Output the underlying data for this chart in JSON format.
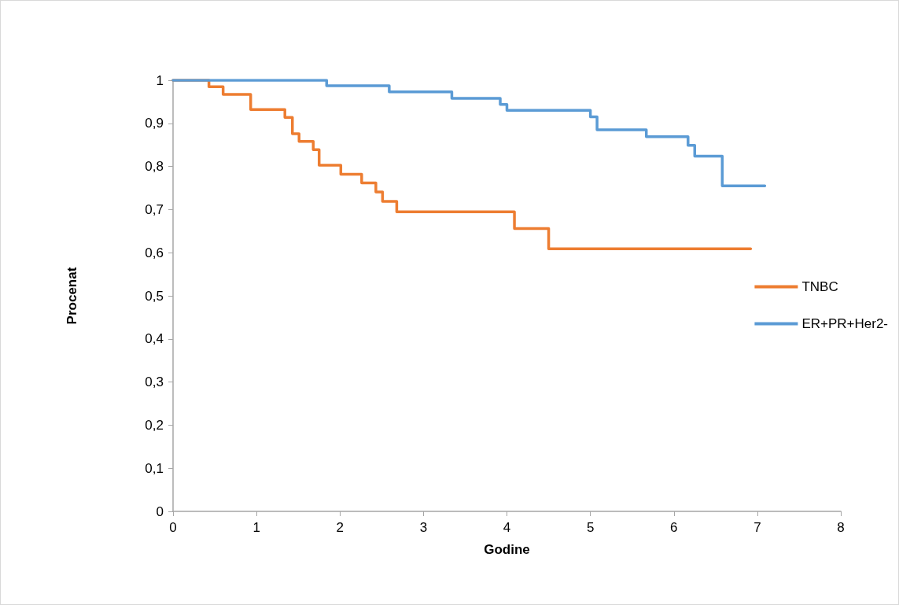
{
  "chart_data": {
    "type": "step",
    "xlabel": "Godine",
    "ylabel": "Procenat",
    "xlim": [
      0,
      8
    ],
    "xticks": [
      0,
      1,
      2,
      3,
      4,
      5,
      6,
      7,
      8
    ],
    "ylim": [
      0,
      1
    ],
    "yticks": [
      0,
      {
        "value": 0.1,
        "label": "0,1"
      },
      {
        "value": 0.2,
        "label": "0,2"
      },
      {
        "value": 0.3,
        "label": "0,3"
      },
      {
        "value": 0.4,
        "label": "0,4"
      },
      {
        "value": 0.5,
        "label": "0,5"
      },
      {
        "value": 0.6,
        "label": "0,6"
      },
      {
        "value": 0.7,
        "label": "0,7"
      },
      {
        "value": 0.8,
        "label": "0,8"
      },
      {
        "value": 0.9,
        "label": "0,9"
      },
      1
    ],
    "grid": false,
    "legend": "right",
    "marker": "none",
    "line_style": "solid",
    "series": [
      {
        "name": "TNBC",
        "color": "#ed7d31",
        "x": [
          0,
          0.43,
          0.6,
          0.93,
          1.34,
          1.43,
          1.51,
          1.68,
          1.75,
          2.01,
          2.26,
          2.43,
          2.51,
          2.68,
          4.09,
          4.5,
          6.92
        ],
        "values": [
          1,
          0.985,
          0.967,
          0.932,
          0.914,
          0.876,
          0.858,
          0.839,
          0.803,
          0.782,
          0.762,
          0.741,
          0.719,
          0.695,
          0.656,
          0.609,
          0.609
        ]
      },
      {
        "name": "ER+PR+Her2-",
        "color": "#5b9bd5",
        "x": [
          0,
          1.84,
          2.59,
          3.34,
          3.92,
          4.0,
          5.0,
          5.08,
          5.67,
          6.17,
          6.25,
          6.58,
          7.09
        ],
        "values": [
          1,
          0.987,
          0.973,
          0.958,
          0.944,
          0.93,
          0.915,
          0.885,
          0.869,
          0.849,
          0.824,
          0.755,
          0.755
        ]
      }
    ]
  }
}
